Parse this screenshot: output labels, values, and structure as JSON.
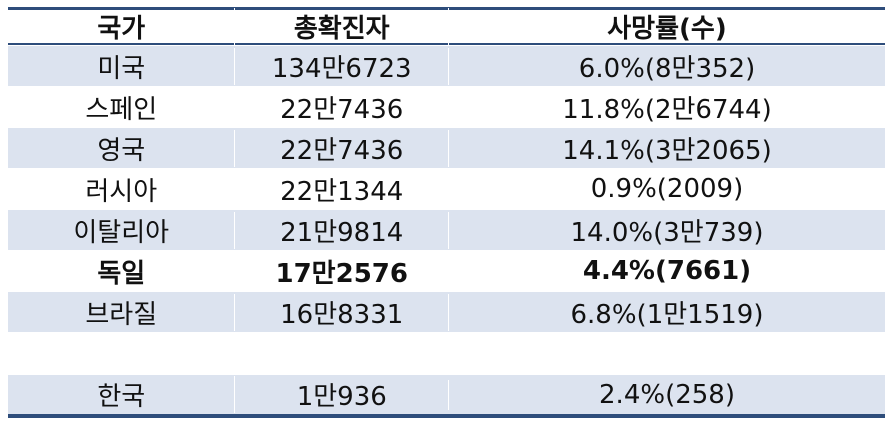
{
  "headers": [
    "국가",
    "총확진자",
    "사망률(수)"
  ],
  "rows": [
    {
      "country": "미국",
      "cases": "134만6723",
      "deaths": "6.0%(8만352)"
    },
    {
      "country": "스페인",
      "cases": "22만7436",
      "deaths": "11.8%(2만6744)"
    },
    {
      "country": "영국",
      "cases": "22만7436",
      "deaths": "14.1%(3만2065)"
    },
    {
      "country": "러시아",
      "cases": "22만1344",
      "deaths": "0.9%(2009)"
    },
    {
      "country": "이탈리아",
      "cases": "21만9814",
      "deaths": "14.0%(3만739)"
    },
    {
      "country": "독일",
      "cases": "17만2576",
      "deaths": "4.4%(7661)"
    },
    {
      "country": "브라질",
      "cases": "16만8331",
      "deaths": "6.8%(1만1519)"
    }
  ],
  "footer_row": {
    "country": "한국",
    "cases": "1만936",
    "deaths": "2.4%(258)"
  },
  "colors": {
    "row_shade": "#dce3ef",
    "rule": "#2e4d7b"
  },
  "chart_data": {
    "type": "table",
    "columns": [
      "국가",
      "총확진자",
      "사망률(수)"
    ],
    "rows": [
      [
        "미국",
        "134만6723",
        "6.0%(8만352)"
      ],
      [
        "스페인",
        "22만7436",
        "11.8%(2만6744)"
      ],
      [
        "영국",
        "22만7436",
        "14.1%(3만2065)"
      ],
      [
        "러시아",
        "22만1344",
        "0.9%(2009)"
      ],
      [
        "이탈리아",
        "21만9814",
        "14.0%(3만739)"
      ],
      [
        "독일",
        "17만2576",
        "4.4%(7661)"
      ],
      [
        "브라질",
        "16만8331",
        "6.8%(1만1519)"
      ],
      [
        "한국",
        "1만936",
        "2.4%(258)"
      ]
    ],
    "emphasized_row": "독일"
  }
}
